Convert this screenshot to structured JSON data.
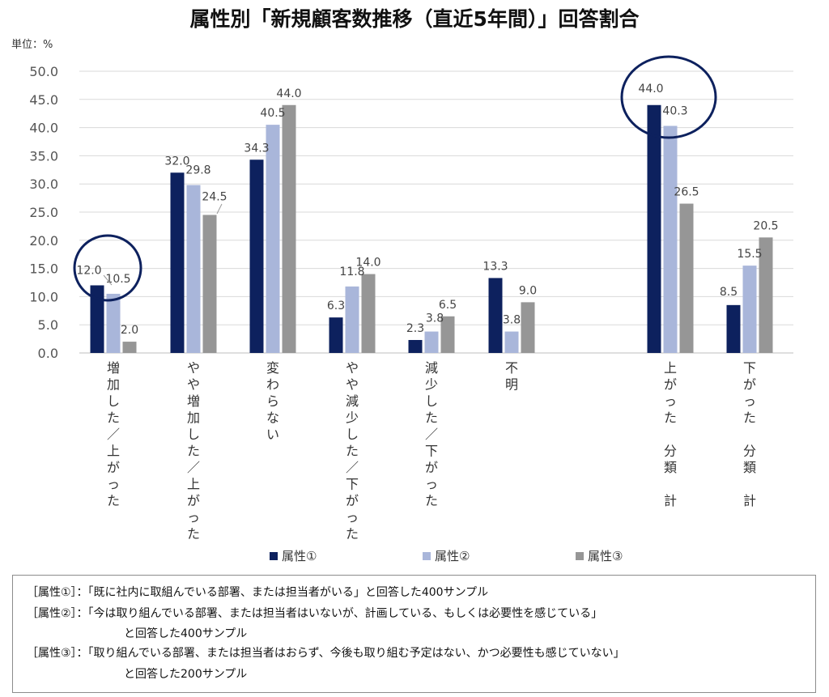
{
  "title": "属性別「新規顧客数推移（直近5年間）」回答割合",
  "unit_label": "単位：%",
  "legend": [
    {
      "label": "属性①",
      "color": "#0d215e"
    },
    {
      "label": "属性②",
      "color": "#a9b6da"
    },
    {
      "label": "属性③",
      "color": "#969696"
    }
  ],
  "chart_data": {
    "type": "bar",
    "title": "属性別「新規顧客数推移（直近5年間）」回答割合",
    "ylabel": "単位：%",
    "ylim": [
      0,
      50
    ],
    "yticks": [
      "0.0",
      "5.0",
      "10.0",
      "15.0",
      "20.0",
      "25.0",
      "30.0",
      "35.0",
      "40.0",
      "45.0",
      "50.0"
    ],
    "categories": [
      [
        "増",
        "加",
        "し",
        "た",
        "／",
        "上",
        "が",
        "っ",
        "た"
      ],
      [
        "や",
        "や",
        "増",
        "加",
        "し",
        "た",
        "／",
        "上",
        "が",
        "っ",
        "た"
      ],
      [
        "変",
        "わ",
        "ら",
        "な",
        "い"
      ],
      [
        "や",
        "や",
        "減",
        "少",
        "し",
        "た",
        "／",
        "下",
        "が",
        "っ",
        "た"
      ],
      [
        "減",
        "少",
        "し",
        "た",
        "／",
        "下",
        "が",
        "っ",
        "た"
      ],
      [
        "不",
        "明"
      ],
      [
        "上",
        "が",
        "っ",
        "た",
        "",
        "分",
        "類",
        "",
        "計"
      ],
      [
        "下",
        "が",
        "っ",
        "た",
        "",
        "分",
        "類",
        "",
        "計"
      ]
    ],
    "series": [
      {
        "name": "属性①",
        "values": [
          12.0,
          32.0,
          34.3,
          6.3,
          2.3,
          13.3,
          44.0,
          8.5
        ]
      },
      {
        "name": "属性②",
        "values": [
          10.5,
          29.8,
          40.5,
          11.8,
          3.8,
          3.8,
          40.3,
          15.5
        ]
      },
      {
        "name": "属性③",
        "values": [
          2.0,
          24.5,
          44.0,
          14.0,
          6.5,
          9.0,
          26.5,
          20.5
        ]
      }
    ],
    "value_labels": [
      [
        "12.0",
        "32.0",
        "34.3",
        "6.3",
        "2.3",
        "13.3",
        "44.0",
        "8.5"
      ],
      [
        "10.5",
        "29.8",
        "40.5",
        "11.8",
        "3.8",
        "3.8",
        "40.3",
        "15.5"
      ],
      [
        "2.0",
        "24.5",
        "44.0",
        "14.0",
        "6.5",
        "9.0",
        "26.5",
        "20.5"
      ]
    ],
    "highlight_circles": [
      "増加した／上がった",
      "上がった 分類 計"
    ]
  },
  "notes": [
    "［属性①］：「既に社内に取組んでいる部署、または担当者がいる」と回答した400サンプル",
    "［属性②］：「今は取り組んでいる部署、または担当者はいないが、計画している、もしくは必要性を感じている」",
    "と回答した400サンプル",
    "［属性③］：「取り組んでいる部署、または担当者はおらず、今後も取り組む予定はない、かつ必要性も感じていない」",
    "と回答した200サンプル"
  ]
}
